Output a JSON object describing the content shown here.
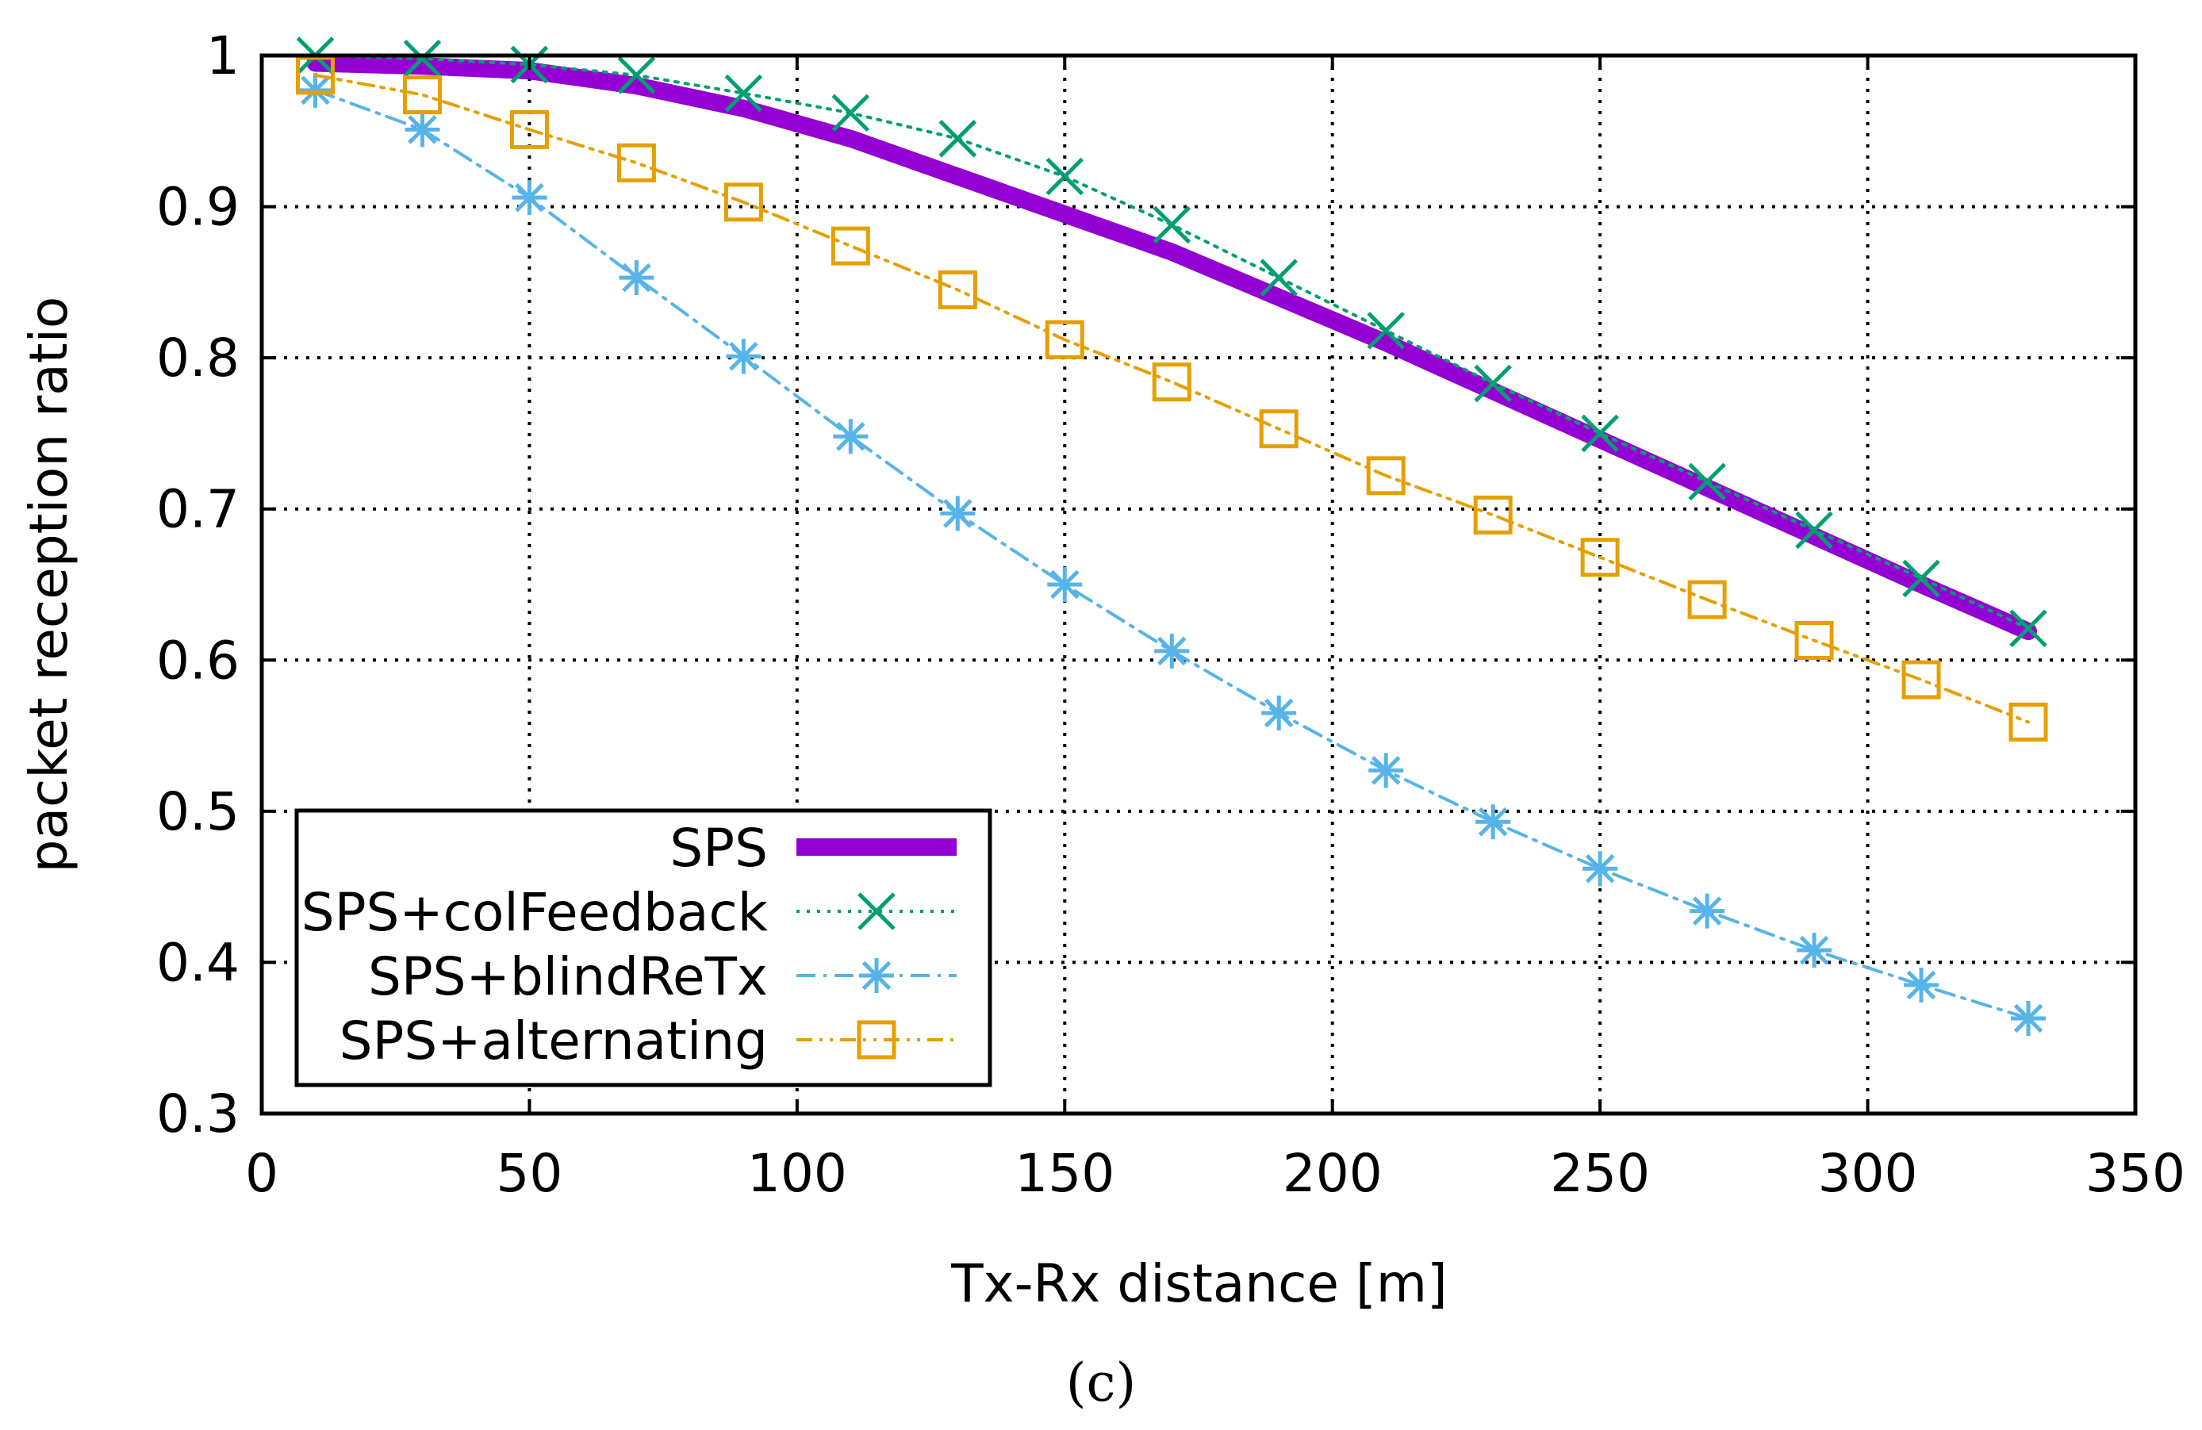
{
  "chart_data": {
    "type": "line",
    "panel_label": "(c)",
    "xlabel": "Tx-Rx distance [m]",
    "ylabel": "packet reception ratio",
    "xlim": [
      0,
      350
    ],
    "ylim": [
      0.3,
      1
    ],
    "x_ticks": [
      0,
      50,
      100,
      150,
      200,
      250,
      300,
      350
    ],
    "x_tick_labels": [
      "0",
      "50",
      "100",
      "150",
      "200",
      "250",
      "300",
      "350"
    ],
    "y_ticks": [
      0.3,
      0.4,
      0.5,
      0.6,
      0.7,
      0.8,
      0.9,
      1.0
    ],
    "y_tick_labels": [
      "0.3",
      "0.4",
      "0.5",
      "0.6",
      "0.7",
      "0.8",
      "0.9",
      "1"
    ],
    "grid": true,
    "legend_position": "bottom-left",
    "x": [
      10,
      30,
      50,
      70,
      90,
      110,
      130,
      150,
      170,
      190,
      210,
      230,
      250,
      270,
      290,
      310,
      330
    ],
    "series": [
      {
        "name": "SPS",
        "color": "#9400d3",
        "style": "solid-thick",
        "marker": "none",
        "values": [
          0.995,
          0.993,
          0.99,
          0.98,
          0.965,
          0.945,
          0.92,
          0.895,
          0.87,
          0.84,
          0.81,
          0.778,
          0.746,
          0.714,
          0.682,
          0.65,
          0.619
        ]
      },
      {
        "name": "SPS+colFeedback",
        "color": "#009e73",
        "style": "dotted",
        "marker": "x",
        "values": [
          1.0,
          0.998,
          0.994,
          0.987,
          0.975,
          0.962,
          0.945,
          0.92,
          0.888,
          0.853,
          0.818,
          0.783,
          0.75,
          0.718,
          0.686,
          0.654,
          0.621
        ]
      },
      {
        "name": "SPS+blindReTx",
        "color": "#56b4e9",
        "style": "dash-dot",
        "marker": "star",
        "values": [
          0.977,
          0.951,
          0.906,
          0.853,
          0.801,
          0.748,
          0.697,
          0.65,
          0.606,
          0.565,
          0.527,
          0.493,
          0.462,
          0.434,
          0.408,
          0.385,
          0.363
        ]
      },
      {
        "name": "SPS+alternating",
        "color": "#e69f00",
        "style": "dash-dot-dot",
        "marker": "square",
        "values": [
          0.987,
          0.974,
          0.951,
          0.929,
          0.903,
          0.874,
          0.845,
          0.812,
          0.784,
          0.753,
          0.722,
          0.696,
          0.668,
          0.64,
          0.613,
          0.587,
          0.559
        ]
      }
    ]
  }
}
